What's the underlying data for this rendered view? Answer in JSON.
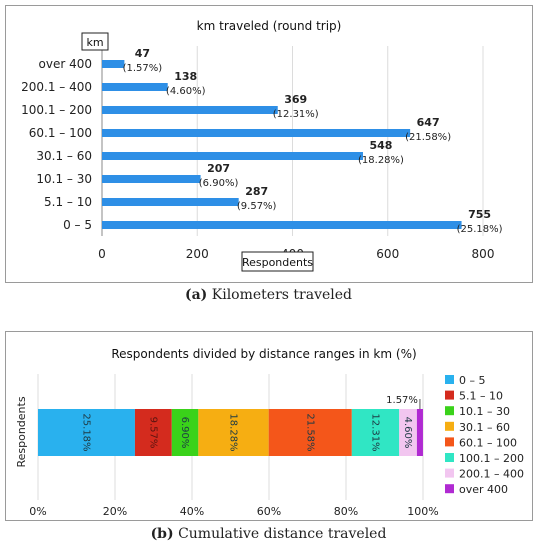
{
  "chart_data": [
    {
      "type": "bar",
      "orientation": "horizontal",
      "title": "km traveled (round trip)",
      "ylabel": "km",
      "xlabel": "Respondents",
      "categories": [
        "over 400",
        "200.1 – 400",
        "100.1 – 200",
        "60.1 – 100",
        "30.1 – 60",
        "10.1 – 30",
        "5.1 – 10",
        "0 – 5"
      ],
      "values": [
        47,
        138,
        369,
        647,
        548,
        207,
        287,
        755
      ],
      "percent_labels": [
        "(1.57%)",
        "(4.60%)",
        "(12.31%)",
        "(21.58%)",
        "(18.28%)",
        "(6.90%)",
        "(9.57%)",
        "(25.18%)"
      ],
      "xlim": [
        0,
        800
      ],
      "xticks": [
        0,
        200,
        400,
        600,
        800
      ],
      "grid": true,
      "bar_color": "#2e8fe6"
    },
    {
      "type": "bar",
      "orientation": "horizontal",
      "stacked": true,
      "title": "Respondents divided by distance ranges in km (%)",
      "ylabel": "Respondents",
      "xlim": [
        0,
        100
      ],
      "xticks": [
        "0%",
        "20%",
        "40%",
        "60%",
        "80%",
        "100%"
      ],
      "legend_position": "right",
      "grid": true,
      "series": [
        {
          "name": "0 – 5",
          "value": 25.18,
          "label": "25.18%",
          "color": "#29b1ee"
        },
        {
          "name": "5.1 – 10",
          "value": 9.57,
          "label": "9.57%",
          "color": "#d42b1e"
        },
        {
          "name": "10.1 – 30",
          "value": 6.9,
          "label": "6.90%",
          "color": "#3ad21a"
        },
        {
          "name": "30.1 – 60",
          "value": 18.28,
          "label": "18.28%",
          "color": "#f6ae12"
        },
        {
          "name": "60.1 – 100",
          "value": 21.58,
          "label": "21.58%",
          "color": "#f4561a"
        },
        {
          "name": "100.1 – 200",
          "value": 12.31,
          "label": "12.31%",
          "color": "#30e6c4"
        },
        {
          "name": "200.1 – 400",
          "value": 4.6,
          "label": "4.60%",
          "color": "#f2c6f0"
        },
        {
          "name": "over 400",
          "value": 1.57,
          "label": "1.57%",
          "color": "#b02ad2"
        }
      ]
    }
  ],
  "captions": {
    "a": {
      "tag": "(a)",
      "text": "Kilometers traveled"
    },
    "b": {
      "tag": "(b)",
      "text": "Cumulative distance traveled"
    }
  }
}
